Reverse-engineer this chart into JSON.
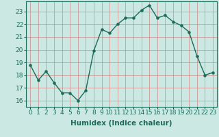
{
  "x": [
    0,
    1,
    2,
    3,
    4,
    5,
    6,
    7,
    8,
    9,
    10,
    11,
    12,
    13,
    14,
    15,
    16,
    17,
    18,
    19,
    20,
    21,
    22,
    23
  ],
  "y": [
    18.8,
    17.6,
    18.3,
    17.4,
    16.6,
    16.6,
    16.0,
    16.8,
    19.9,
    21.6,
    21.3,
    22.0,
    22.5,
    22.5,
    23.1,
    23.5,
    22.5,
    22.7,
    22.2,
    21.9,
    21.4,
    19.5,
    18.0,
    18.2
  ],
  "line_color": "#1a6b5a",
  "marker": "o",
  "markersize": 2.2,
  "linewidth": 1.0,
  "bg_color": "#cbe8e3",
  "grid_color": "#d08888",
  "xlabel": "Humidex (Indice chaleur)",
  "ylim": [
    15.5,
    23.8
  ],
  "xlim": [
    -0.5,
    23.5
  ],
  "yticks": [
    16,
    17,
    18,
    19,
    20,
    21,
    22,
    23
  ],
  "xticks": [
    0,
    1,
    2,
    3,
    4,
    5,
    6,
    7,
    8,
    9,
    10,
    11,
    12,
    13,
    14,
    15,
    16,
    17,
    18,
    19,
    20,
    21,
    22,
    23
  ],
  "xlabel_fontsize": 7.5,
  "tick_fontsize": 6.5,
  "tick_color": "#1a6b5a",
  "label_color": "#1a6b5a"
}
